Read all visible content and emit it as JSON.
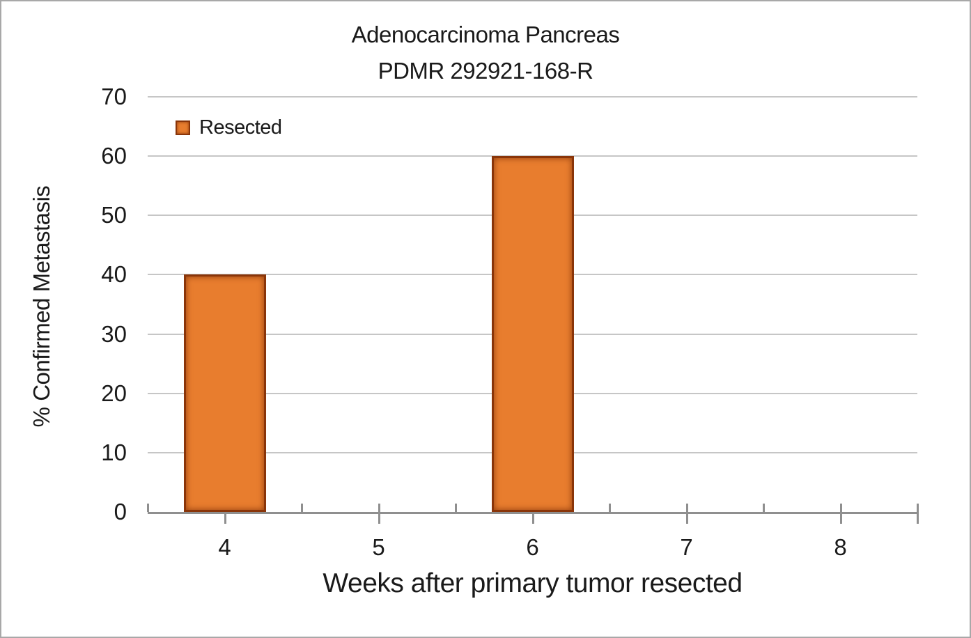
{
  "window": {
    "background_color": "#ffffff",
    "border_color": "#a8a8a8"
  },
  "chart": {
    "title_line1": "Adenocarcinoma Pancreas",
    "title_line2": "PDMR 292921-168-R",
    "legend": {
      "label": "Resected",
      "marker_color": "#e87d2e",
      "marker_border_color": "#8a3509"
    },
    "y_axis_title": "% Confirmed Metastasis",
    "x_axis_title": "Weeks after primary tumor resected"
  },
  "chart_data": {
    "type": "bar",
    "title": "Adenocarcinoma Pancreas PDMR 292921-168-R",
    "categories": [
      "4",
      "5",
      "6",
      "7",
      "8"
    ],
    "series": [
      {
        "name": "Resected",
        "values": [
          40,
          null,
          60,
          null,
          null
        ],
        "color": "#e87d2e",
        "border_color": "#8a3509"
      }
    ],
    "xlabel": "Weeks after primary tumor resected",
    "ylabel": "% Confirmed Metastasis",
    "ylim": [
      0,
      70
    ],
    "ytick_interval": 10,
    "yticks": [
      0,
      10,
      20,
      30,
      40,
      50,
      60,
      70
    ],
    "grid": "horizontal",
    "gridline_color": "#c6c6c6",
    "axis_color": "#8f8f8f",
    "legend_position": "inside-top-left",
    "text_color": "#1a1a1a"
  }
}
